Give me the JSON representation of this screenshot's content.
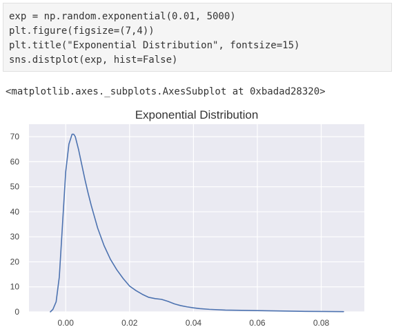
{
  "code_cell": {
    "lines": [
      "exp = np.random.exponential(0.01, 5000)",
      "plt.figure(figsize=(7,4))",
      "plt.title(\"Exponential Distribution\", fontsize=15)",
      "sns.distplot(exp, hist=False)"
    ]
  },
  "output": {
    "text": "<matplotlib.axes._subplots.AxesSubplot at 0xbadad28320>"
  },
  "chart_data": {
    "type": "line",
    "title": "Exponential Distribution",
    "xlabel": "",
    "ylabel": "",
    "xlim": [
      -0.0115,
      0.0935
    ],
    "ylim": [
      0,
      75
    ],
    "xticks": [
      0.0,
      0.02,
      0.04,
      0.06,
      0.08
    ],
    "xtick_labels": [
      "0.00",
      "0.02",
      "0.04",
      "0.06",
      "0.08"
    ],
    "yticks": [
      0,
      10,
      20,
      30,
      40,
      50,
      60,
      70
    ],
    "ytick_labels": [
      "0",
      "10",
      "20",
      "30",
      "40",
      "50",
      "60",
      "70"
    ],
    "grid": true,
    "background_color": "#eaeaf2",
    "series": [
      {
        "color": "#4c72b0",
        "x": [
          -0.0048,
          -0.004,
          -0.003,
          -0.002,
          -0.001,
          0.0,
          0.001,
          0.002,
          0.0025,
          0.003,
          0.004,
          0.005,
          0.006,
          0.007,
          0.008,
          0.009,
          0.01,
          0.012,
          0.014,
          0.016,
          0.018,
          0.02,
          0.022,
          0.024,
          0.026,
          0.028,
          0.03,
          0.032,
          0.034,
          0.036,
          0.038,
          0.04,
          0.042,
          0.045,
          0.05,
          0.055,
          0.06,
          0.065,
          0.07,
          0.075,
          0.08,
          0.087
        ],
        "y": [
          0.0,
          1.0,
          4.0,
          14.0,
          35.0,
          56.0,
          67.0,
          71.0,
          71.0,
          70.0,
          65.0,
          59.0,
          53.0,
          47.5,
          42.5,
          38.0,
          33.5,
          26.5,
          21.0,
          16.8,
          13.3,
          10.3,
          8.5,
          7.0,
          5.8,
          5.3,
          5.0,
          4.2,
          3.2,
          2.5,
          2.0,
          1.6,
          1.3,
          1.0,
          0.7,
          0.6,
          0.5,
          0.4,
          0.3,
          0.2,
          0.15,
          0.1
        ]
      }
    ]
  }
}
